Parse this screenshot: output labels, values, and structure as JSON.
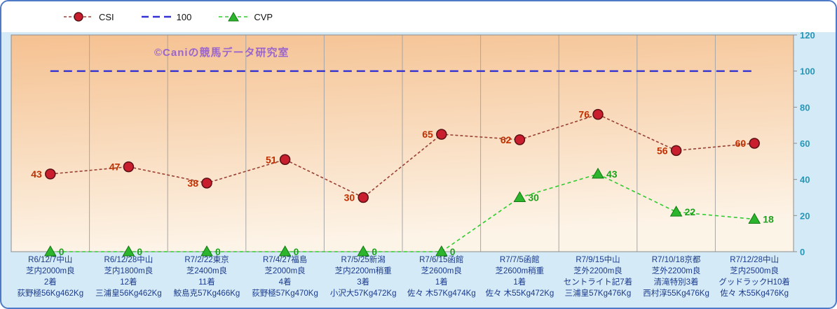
{
  "watermark": "©Caniの競馬データ研究室",
  "colors": {
    "frame_border": "#4d79c7",
    "frame_bg": "#d5eaf7",
    "legend_bg": "#ffffff",
    "plot_bg_top": "#f5c191",
    "plot_bg_mid": "#f9ddc0",
    "plot_bg_bottom": "#fdf4e8",
    "plot_border": "#8c8c8c",
    "gridline": "#a6a6a6",
    "csi_line": "#994033",
    "csi_marker_fill": "#c81e2e",
    "csi_marker_stroke": "#5a1014",
    "csi_label": "#c03000",
    "hundred_line": "#3232d2",
    "cvp_line": "#2ecc2e",
    "cvp_marker_fill": "#2db42d",
    "cvp_marker_stroke": "#127812",
    "cvp_label": "#1fa01f",
    "y_axis_label": "#2796b6",
    "x_axis_label": "#1a3a8c",
    "watermark": "#9b66cc",
    "legend_text": "#111111"
  },
  "chart_data": {
    "type": "line",
    "title": "",
    "legend_position": "top",
    "grid": "vertical-only",
    "y_axis": {
      "position": "right",
      "min": 0,
      "max": 120,
      "step": 20,
      "ticks": [
        0,
        20,
        40,
        60,
        80,
        100,
        120
      ]
    },
    "categories": [
      [
        "R6/12/7中山",
        "芝内2000m良",
        "2着",
        "荻野極56Kg462Kg"
      ],
      [
        "R6/12/28中山",
        "芝内1800m良",
        "12着",
        "三浦皇56Kg462Kg"
      ],
      [
        "R7/2/22東京",
        "芝2400m良",
        "11着",
        "鮫島克57Kg466Kg"
      ],
      [
        "R7/4/27福島",
        "芝2000m良",
        "4着",
        "荻野極57Kg470Kg"
      ],
      [
        "R7/5/25新潟",
        "芝内2200m稍重",
        "3着",
        "小沢大57Kg472Kg"
      ],
      [
        "R7/6/15函館",
        "芝2600m良",
        "1着",
        "佐々 木57Kg474Kg"
      ],
      [
        "R7/7/5函館",
        "芝2600m稍重",
        "1着",
        "佐々 木55Kg472Kg"
      ],
      [
        "R7/9/15中山",
        "芝外2200m良",
        "セントライト記7着",
        "三浦皇57Kg476Kg"
      ],
      [
        "R7/10/18京都",
        "芝外2200m良",
        "清滝特別3着",
        "西村淳55Kg476Kg"
      ],
      [
        "R7/12/28中山",
        "芝内2500m良",
        "グッドラックH10着",
        "佐々 木55Kg476Kg"
      ]
    ],
    "series": [
      {
        "name": "CSI",
        "values": [
          43,
          47,
          38,
          51,
          30,
          65,
          62,
          76,
          56,
          60
        ]
      },
      {
        "name": "100",
        "values": [
          100,
          100,
          100,
          100,
          100,
          100,
          100,
          100,
          100,
          100
        ]
      },
      {
        "name": "CVP",
        "values": [
          0,
          0,
          0,
          0,
          0,
          0,
          30,
          43,
          22,
          18
        ]
      }
    ]
  }
}
